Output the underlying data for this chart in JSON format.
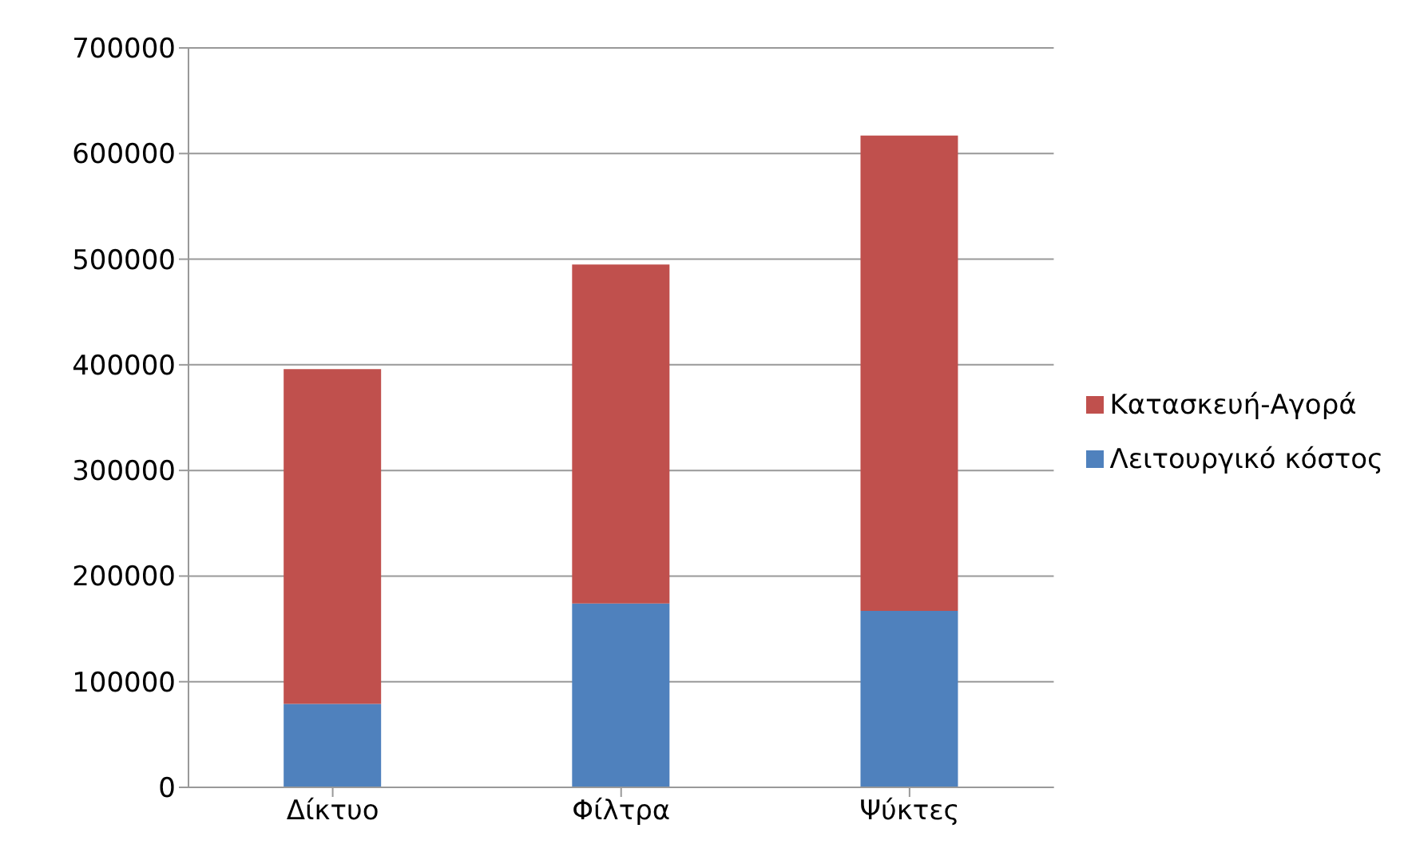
{
  "chart_data": {
    "type": "bar",
    "stacked": true,
    "categories": [
      "Δίκτυο",
      "Φίλτρα",
      "Ψύκτες"
    ],
    "series": [
      {
        "name": "Λειτουργικό κόστος",
        "color": "#4f81bd",
        "values": [
          79000,
          174000,
          167000
        ]
      },
      {
        "name": "Κατασκευή-Αγορά",
        "color": "#c0504d",
        "values": [
          317000,
          321000,
          450000
        ]
      }
    ],
    "ylim": [
      0,
      700000
    ],
    "yticks": [
      0,
      100000,
      200000,
      300000,
      400000,
      500000,
      600000,
      700000
    ],
    "grid": "y",
    "legend": "right"
  }
}
